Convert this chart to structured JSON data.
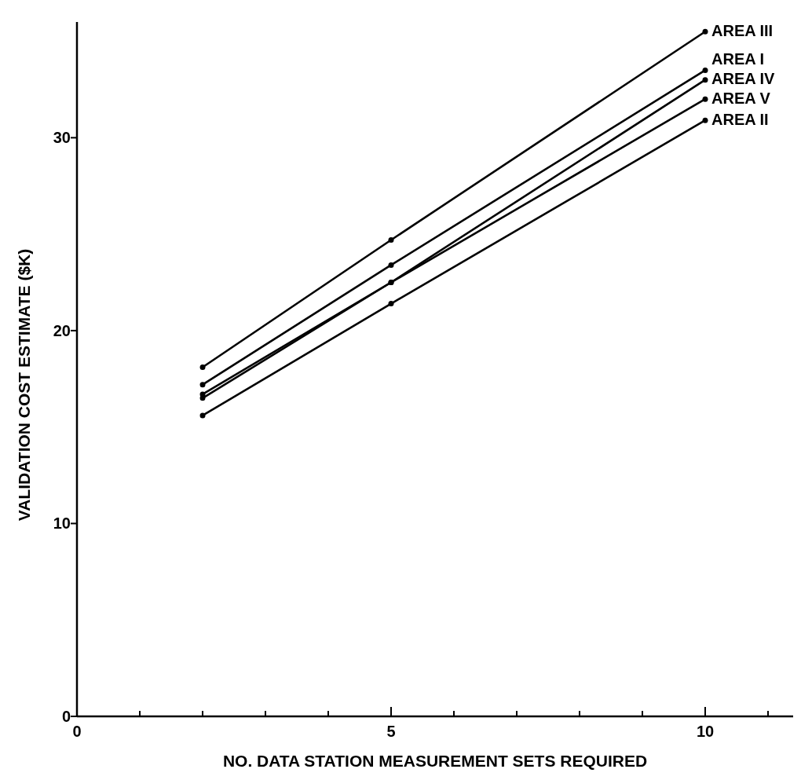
{
  "chart_data": {
    "type": "line",
    "xlabel": "NO. DATA STATION MEASUREMENT SETS REQUIRED",
    "ylabel": "VALIDATION COST ESTIMATE ($K)",
    "x": [
      2,
      5,
      10
    ],
    "series": [
      {
        "name": "AREA III",
        "color": "#000000",
        "values": [
          18.1,
          24.7,
          35.5
        ]
      },
      {
        "name": "AREA I",
        "color": "#000000",
        "values": [
          17.2,
          23.4,
          33.5
        ]
      },
      {
        "name": "AREA IV",
        "color": "#000000",
        "values": [
          16.7,
          22.5,
          33.0
        ]
      },
      {
        "name": "AREA V",
        "color": "#000000",
        "values": [
          16.5,
          22.5,
          32.0
        ]
      },
      {
        "name": "AREA II",
        "color": "#000000",
        "values": [
          15.6,
          21.4,
          30.9
        ]
      }
    ],
    "xlim": [
      0,
      11.4
    ],
    "ylim": [
      0,
      36
    ],
    "xticks": [
      0,
      {
        "value": 1,
        "label": null
      },
      {
        "value": 2,
        "label": null
      },
      {
        "value": 3,
        "label": null
      },
      {
        "value": 4,
        "label": null
      },
      5,
      {
        "value": 6,
        "label": null
      },
      {
        "value": 7,
        "label": null
      },
      {
        "value": 8,
        "label": null
      },
      {
        "value": 9,
        "label": null
      },
      10,
      {
        "value": 11,
        "label": null
      }
    ],
    "yticks": [
      0,
      10,
      20,
      30
    ],
    "marker": "circle",
    "line_style": "solid",
    "grid": false
  }
}
